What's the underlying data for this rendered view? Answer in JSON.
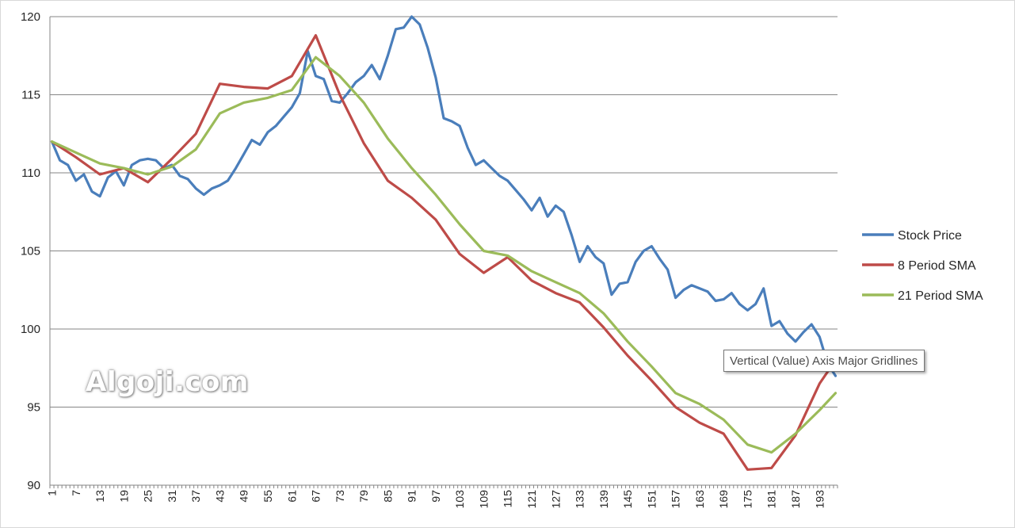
{
  "watermark": "Algoji.com",
  "tooltip": "Vertical (Value) Axis Major Gridlines",
  "chart_data": {
    "type": "line",
    "x_label_start": 1,
    "x_label_step": 6,
    "x_max": 197,
    "ylim": [
      90,
      120
    ],
    "yticks": [
      90,
      95,
      100,
      105,
      110,
      115,
      120
    ],
    "grid": "horizontal-major",
    "legend_position": "right",
    "series": [
      {
        "name": "Stock Price",
        "color": "#4a7ebb",
        "points": [
          [
            1,
            112
          ],
          [
            3,
            110.8
          ],
          [
            5,
            110.5
          ],
          [
            7,
            109.5
          ],
          [
            9,
            109.9
          ],
          [
            11,
            108.8
          ],
          [
            13,
            108.5
          ],
          [
            15,
            109.7
          ],
          [
            17,
            110.1
          ],
          [
            19,
            109.2
          ],
          [
            21,
            110.5
          ],
          [
            23,
            110.8
          ],
          [
            25,
            110.9
          ],
          [
            27,
            110.8
          ],
          [
            29,
            110.3
          ],
          [
            31,
            110.5
          ],
          [
            33,
            109.8
          ],
          [
            35,
            109.6
          ],
          [
            37,
            109.0
          ],
          [
            39,
            108.6
          ],
          [
            41,
            109.0
          ],
          [
            43,
            109.2
          ],
          [
            45,
            109.5
          ],
          [
            47,
            110.3
          ],
          [
            49,
            111.2
          ],
          [
            51,
            112.1
          ],
          [
            53,
            111.8
          ],
          [
            55,
            112.6
          ],
          [
            57,
            113.0
          ],
          [
            59,
            113.6
          ],
          [
            61,
            114.2
          ],
          [
            63,
            115.1
          ],
          [
            65,
            117.8
          ],
          [
            67,
            116.2
          ],
          [
            69,
            116.0
          ],
          [
            71,
            114.6
          ],
          [
            73,
            114.5
          ],
          [
            75,
            115.1
          ],
          [
            77,
            115.8
          ],
          [
            79,
            116.2
          ],
          [
            81,
            116.9
          ],
          [
            83,
            116.0
          ],
          [
            85,
            117.5
          ],
          [
            87,
            119.2
          ],
          [
            89,
            119.3
          ],
          [
            91,
            120.0
          ],
          [
            93,
            119.5
          ],
          [
            95,
            118.0
          ],
          [
            97,
            116.1
          ],
          [
            99,
            113.5
          ],
          [
            101,
            113.3
          ],
          [
            103,
            113.0
          ],
          [
            105,
            111.6
          ],
          [
            107,
            110.5
          ],
          [
            109,
            110.8
          ],
          [
            111,
            110.3
          ],
          [
            113,
            109.8
          ],
          [
            115,
            109.5
          ],
          [
            117,
            108.9
          ],
          [
            119,
            108.3
          ],
          [
            121,
            107.6
          ],
          [
            123,
            108.4
          ],
          [
            125,
            107.2
          ],
          [
            127,
            107.9
          ],
          [
            129,
            107.5
          ],
          [
            131,
            106.0
          ],
          [
            133,
            104.3
          ],
          [
            135,
            105.3
          ],
          [
            137,
            104.6
          ],
          [
            139,
            104.2
          ],
          [
            141,
            102.2
          ],
          [
            143,
            102.9
          ],
          [
            145,
            103.0
          ],
          [
            147,
            104.3
          ],
          [
            149,
            105.0
          ],
          [
            151,
            105.3
          ],
          [
            153,
            104.5
          ],
          [
            155,
            103.8
          ],
          [
            157,
            102.0
          ],
          [
            159,
            102.5
          ],
          [
            161,
            102.8
          ],
          [
            163,
            102.6
          ],
          [
            165,
            102.4
          ],
          [
            167,
            101.8
          ],
          [
            169,
            101.9
          ],
          [
            171,
            102.3
          ],
          [
            173,
            101.6
          ],
          [
            175,
            101.2
          ],
          [
            177,
            101.6
          ],
          [
            179,
            102.6
          ],
          [
            181,
            100.2
          ],
          [
            183,
            100.5
          ],
          [
            185,
            99.7
          ],
          [
            187,
            99.2
          ],
          [
            189,
            99.8
          ],
          [
            191,
            100.3
          ],
          [
            193,
            99.5
          ],
          [
            195,
            97.8
          ],
          [
            196,
            97.4
          ],
          [
            197,
            97.0
          ]
        ]
      },
      {
        "name": "8 Period SMA",
        "color": "#be4b48",
        "points": [
          [
            1,
            112
          ],
          [
            7,
            111
          ],
          [
            13,
            109.9
          ],
          [
            19,
            110.3
          ],
          [
            25,
            109.4
          ],
          [
            31,
            110.9
          ],
          [
            37,
            112.5
          ],
          [
            43,
            115.7
          ],
          [
            49,
            115.5
          ],
          [
            55,
            115.4
          ],
          [
            61,
            116.2
          ],
          [
            67,
            118.8
          ],
          [
            73,
            115.0
          ],
          [
            79,
            111.9
          ],
          [
            85,
            109.5
          ],
          [
            91,
            108.4
          ],
          [
            97,
            107.0
          ],
          [
            103,
            104.8
          ],
          [
            109,
            103.6
          ],
          [
            115,
            104.6
          ],
          [
            121,
            103.1
          ],
          [
            127,
            102.3
          ],
          [
            133,
            101.7
          ],
          [
            139,
            100.1
          ],
          [
            145,
            98.3
          ],
          [
            151,
            96.7
          ],
          [
            157,
            95.0
          ],
          [
            163,
            94.0
          ],
          [
            169,
            93.3
          ],
          [
            175,
            91.0
          ],
          [
            181,
            91.1
          ],
          [
            187,
            93.2
          ],
          [
            193,
            96.5
          ],
          [
            197,
            98.0
          ]
        ]
      },
      {
        "name": "21 Period SMA",
        "color": "#9bbb59",
        "points": [
          [
            1,
            112
          ],
          [
            7,
            111.3
          ],
          [
            13,
            110.6
          ],
          [
            19,
            110.3
          ],
          [
            25,
            109.9
          ],
          [
            31,
            110.4
          ],
          [
            37,
            111.5
          ],
          [
            43,
            113.8
          ],
          [
            49,
            114.5
          ],
          [
            55,
            114.8
          ],
          [
            61,
            115.3
          ],
          [
            67,
            117.4
          ],
          [
            73,
            116.2
          ],
          [
            79,
            114.5
          ],
          [
            85,
            112.2
          ],
          [
            91,
            110.3
          ],
          [
            97,
            108.6
          ],
          [
            103,
            106.7
          ],
          [
            109,
            105.0
          ],
          [
            115,
            104.7
          ],
          [
            121,
            103.7
          ],
          [
            127,
            103.0
          ],
          [
            133,
            102.3
          ],
          [
            139,
            101.0
          ],
          [
            145,
            99.2
          ],
          [
            151,
            97.6
          ],
          [
            157,
            95.9
          ],
          [
            163,
            95.2
          ],
          [
            169,
            94.2
          ],
          [
            175,
            92.6
          ],
          [
            181,
            92.1
          ],
          [
            187,
            93.3
          ],
          [
            193,
            94.8
          ],
          [
            197,
            95.9
          ]
        ]
      }
    ]
  }
}
